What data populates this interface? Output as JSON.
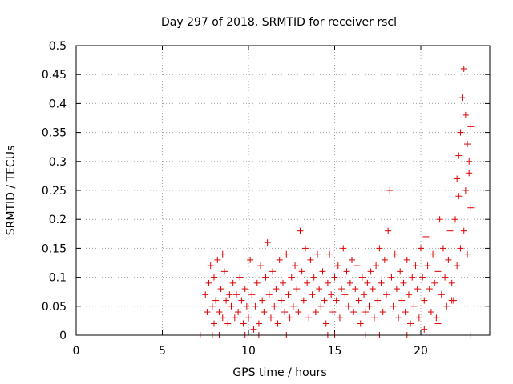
{
  "chart_data": {
    "type": "scatter",
    "title": "Day 297 of 2018, SRMTID for receiver rscl",
    "xlabel": "GPS time / hours",
    "ylabel": "SRMTID / TECUs",
    "xlim": [
      0,
      24
    ],
    "ylim": [
      0,
      0.5
    ],
    "xticks": [
      "0",
      "5",
      "10",
      "15",
      "20"
    ],
    "yticks": [
      "0",
      "0.05",
      "0.1",
      "0.15",
      "0.2",
      "0.25",
      "0.3",
      "0.35",
      "0.4",
      "0.45",
      "0.5"
    ],
    "grid": true,
    "marker": "+",
    "color": "#e00000",
    "series": [
      {
        "points": [
          [
            7.2,
            0.0
          ],
          [
            7.5,
            0.07
          ],
          [
            7.6,
            0.04
          ],
          [
            7.7,
            0.09
          ],
          [
            7.8,
            0.12
          ],
          [
            7.9,
            0.05
          ],
          [
            8.0,
            0.02
          ],
          [
            8.0,
            0.1
          ],
          [
            8.1,
            0.06
          ],
          [
            8.2,
            0.13
          ],
          [
            8.3,
            0.04
          ],
          [
            8.4,
            0.08
          ],
          [
            8.5,
            0.14
          ],
          [
            8.5,
            0.03
          ],
          [
            8.6,
            0.11
          ],
          [
            8.7,
            0.06
          ],
          [
            8.8,
            0.02
          ],
          [
            8.9,
            0.07
          ],
          [
            9.0,
            0.05
          ],
          [
            9.1,
            0.09
          ],
          [
            9.2,
            0.03
          ],
          [
            9.3,
            0.07
          ],
          [
            9.4,
            0.04
          ],
          [
            9.5,
            0.1
          ],
          [
            9.6,
            0.06
          ],
          [
            9.7,
            0.02
          ],
          [
            9.8,
            0.08
          ],
          [
            9.9,
            0.05
          ],
          [
            10.0,
            0.03
          ],
          [
            10.1,
            0.13
          ],
          [
            10.2,
            0.07
          ],
          [
            10.3,
            0.01
          ],
          [
            10.4,
            0.05
          ],
          [
            10.5,
            0.09
          ],
          [
            10.6,
            0.02
          ],
          [
            10.7,
            0.12
          ],
          [
            10.8,
            0.06
          ],
          [
            10.9,
            0.04
          ],
          [
            11.0,
            0.1
          ],
          [
            11.1,
            0.16
          ],
          [
            11.2,
            0.07
          ],
          [
            11.3,
            0.03
          ],
          [
            11.4,
            0.11
          ],
          [
            11.5,
            0.05
          ],
          [
            11.6,
            0.08
          ],
          [
            11.7,
            0.02
          ],
          [
            11.8,
            0.13
          ],
          [
            11.9,
            0.06
          ],
          [
            12.0,
            0.09
          ],
          [
            12.1,
            0.04
          ],
          [
            12.2,
            0.14
          ],
          [
            12.3,
            0.07
          ],
          [
            12.4,
            0.03
          ],
          [
            12.5,
            0.1
          ],
          [
            12.6,
            0.05
          ],
          [
            12.7,
            0.12
          ],
          [
            12.8,
            0.08
          ],
          [
            12.9,
            0.04
          ],
          [
            13.0,
            0.18
          ],
          [
            13.1,
            0.11
          ],
          [
            13.2,
            0.06
          ],
          [
            13.3,
            0.15
          ],
          [
            13.4,
            0.09
          ],
          [
            13.5,
            0.03
          ],
          [
            13.6,
            0.13
          ],
          [
            13.7,
            0.07
          ],
          [
            13.8,
            0.1
          ],
          [
            13.9,
            0.04
          ],
          [
            14.0,
            0.14
          ],
          [
            14.1,
            0.08
          ],
          [
            14.2,
            0.05
          ],
          [
            14.3,
            0.11
          ],
          [
            14.4,
            0.06
          ],
          [
            14.5,
            0.02
          ],
          [
            14.6,
            0.09
          ],
          [
            14.7,
            0.14
          ],
          [
            14.8,
            0.07
          ],
          [
            14.9,
            0.04
          ],
          [
            15.0,
            0.1
          ],
          [
            15.1,
            0.06
          ],
          [
            15.2,
            0.12
          ],
          [
            15.3,
            0.03
          ],
          [
            15.4,
            0.08
          ],
          [
            15.5,
            0.15
          ],
          [
            15.6,
            0.07
          ],
          [
            15.7,
            0.11
          ],
          [
            15.8,
            0.05
          ],
          [
            15.9,
            0.09
          ],
          [
            16.0,
            0.13
          ],
          [
            16.1,
            0.04
          ],
          [
            16.2,
            0.08
          ],
          [
            16.3,
            0.12
          ],
          [
            16.4,
            0.06
          ],
          [
            16.5,
            0.02
          ],
          [
            16.6,
            0.1
          ],
          [
            16.7,
            0.07
          ],
          [
            16.8,
            0.04
          ],
          [
            16.9,
            0.09
          ],
          [
            17.0,
            0.05
          ],
          [
            17.1,
            0.11
          ],
          [
            17.2,
            0.08
          ],
          [
            17.3,
            0.03
          ],
          [
            17.4,
            0.12
          ],
          [
            17.5,
            0.06
          ],
          [
            17.6,
            0.15
          ],
          [
            17.7,
            0.09
          ],
          [
            17.8,
            0.04
          ],
          [
            17.9,
            0.13
          ],
          [
            18.0,
            0.07
          ],
          [
            18.1,
            0.18
          ],
          [
            18.2,
            0.25
          ],
          [
            18.3,
            0.1
          ],
          [
            18.4,
            0.05
          ],
          [
            18.5,
            0.14
          ],
          [
            18.6,
            0.08
          ],
          [
            18.7,
            0.03
          ],
          [
            18.8,
            0.11
          ],
          [
            18.9,
            0.06
          ],
          [
            19.0,
            0.09
          ],
          [
            19.1,
            0.04
          ],
          [
            19.2,
            0.13
          ],
          [
            19.3,
            0.07
          ],
          [
            19.4,
            0.02
          ],
          [
            19.5,
            0.1
          ],
          [
            19.6,
            0.05
          ],
          [
            19.7,
            0.12
          ],
          [
            19.8,
            0.08
          ],
          [
            19.9,
            0.03
          ],
          [
            20.0,
            0.15
          ],
          [
            20.1,
            0.1
          ],
          [
            20.2,
            0.06
          ],
          [
            20.3,
            0.17
          ],
          [
            20.4,
            0.12
          ],
          [
            20.5,
            0.08
          ],
          [
            20.6,
            0.04
          ],
          [
            20.7,
            0.14
          ],
          [
            20.8,
            0.09
          ],
          [
            20.9,
            0.03
          ],
          [
            21.0,
            0.11
          ],
          [
            21.1,
            0.2
          ],
          [
            21.2,
            0.07
          ],
          [
            21.3,
            0.15
          ],
          [
            21.4,
            0.1
          ],
          [
            21.5,
            0.05
          ],
          [
            21.6,
            0.13
          ],
          [
            21.7,
            0.18
          ],
          [
            21.8,
            0.09
          ],
          [
            21.9,
            0.06
          ],
          [
            22.0,
            0.2
          ],
          [
            22.1,
            0.27
          ],
          [
            22.2,
            0.31
          ],
          [
            22.3,
            0.35
          ],
          [
            22.4,
            0.41
          ],
          [
            22.5,
            0.46
          ],
          [
            22.6,
            0.38
          ],
          [
            22.7,
            0.33
          ],
          [
            22.8,
            0.28
          ],
          [
            22.9,
            0.22
          ],
          [
            22.5,
            0.18
          ],
          [
            22.6,
            0.25
          ],
          [
            22.7,
            0.14
          ],
          [
            22.8,
            0.3
          ],
          [
            22.9,
            0.36
          ],
          [
            22.3,
            0.15
          ],
          [
            22.2,
            0.24
          ],
          [
            22.1,
            0.12
          ],
          [
            21.8,
            0.06
          ],
          [
            21.0,
            0.02
          ],
          [
            20.2,
            0.01
          ],
          [
            19.2,
            0.0
          ],
          [
            17.6,
            0.0
          ],
          [
            16.8,
            0.0
          ],
          [
            15.0,
            0.0
          ],
          [
            14.6,
            0.0
          ],
          [
            12.2,
            0.0
          ],
          [
            10.6,
            0.0
          ],
          [
            9.8,
            0.0
          ],
          [
            8.3,
            0.0
          ],
          [
            7.9,
            0.0
          ],
          [
            22.9,
            0.0
          ]
        ]
      }
    ]
  }
}
